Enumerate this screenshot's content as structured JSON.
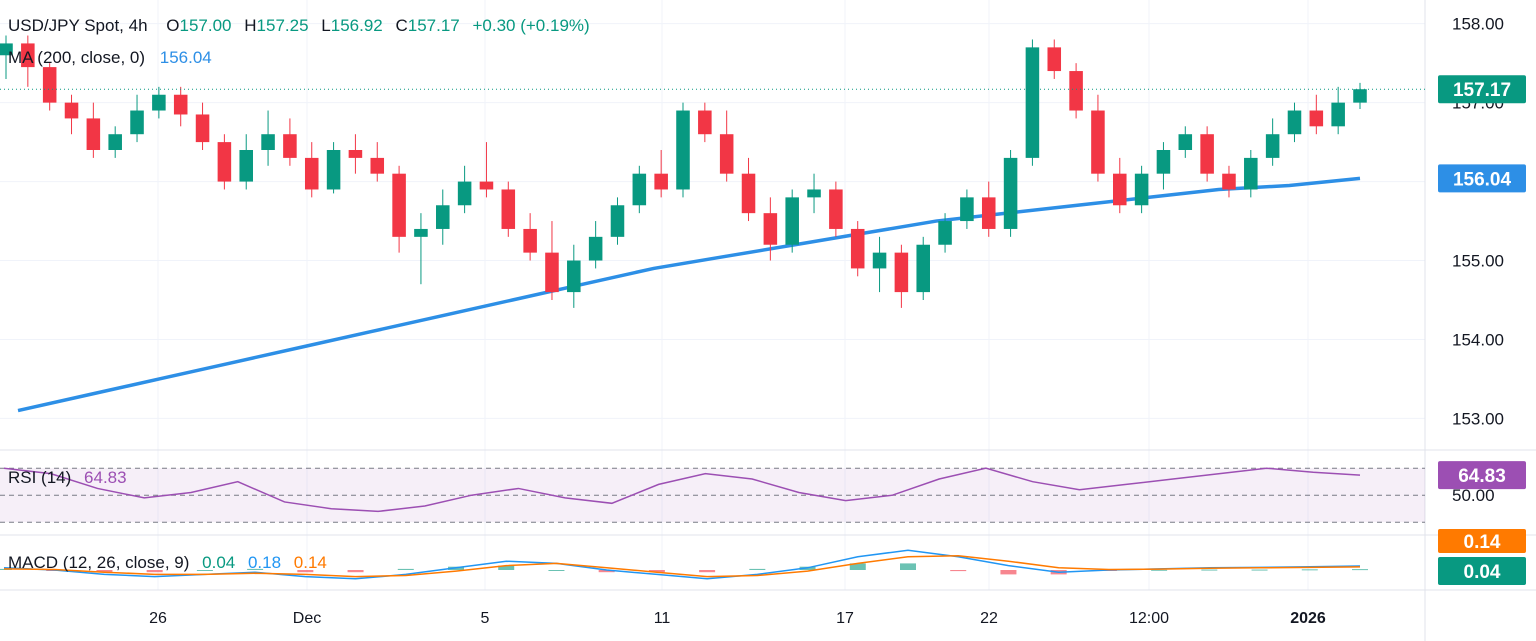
{
  "header": {
    "symbol": "USD/JPY Spot, 4h",
    "o_label": "O",
    "o_value": "157.00",
    "h_label": "H",
    "h_value": "157.25",
    "l_label": "L",
    "l_value": "156.92",
    "c_label": "C",
    "c_value": "157.17",
    "change": "+0.30 (+0.19%)"
  },
  "ma_legend": {
    "label": "MA (200, close, 0)",
    "value": "156.04"
  },
  "rsi_legend": {
    "label": "RSI (14)",
    "value": "64.83"
  },
  "macd_legend": {
    "label": "MACD (12, 26, close, 9)",
    "hist": "0.04",
    "macd": "0.18",
    "signal": "0.14"
  },
  "colors": {
    "up": "#089981",
    "down": "#f23645",
    "ma": "#2962ff",
    "ma_line": "#2d8fe6",
    "rsi": "#9c4fb3",
    "macd": "#2196f3",
    "signal": "#ff7a00",
    "price_label_bg": "#089981"
  },
  "chart_data": [
    {
      "type": "candlestick",
      "title": "USD/JPY Spot, 4h",
      "x_tick_labels": [
        "26",
        "Dec",
        "5",
        "11",
        "17",
        "22",
        "12:00",
        "2026"
      ],
      "y_tick_labels": [
        "158.00",
        "157.00",
        "156.00",
        "155.00",
        "154.00",
        "153.00"
      ],
      "ylim": [
        152.6,
        158.3
      ],
      "last_price_label": "157.17",
      "ma_label": "156.04",
      "ohlc": [
        [
          157.6,
          157.85,
          157.3,
          157.75
        ],
        [
          157.75,
          157.85,
          157.2,
          157.45
        ],
        [
          157.45,
          157.5,
          156.9,
          157.0
        ],
        [
          157.0,
          157.1,
          156.6,
          156.8
        ],
        [
          156.8,
          157.0,
          156.3,
          156.4
        ],
        [
          156.4,
          156.7,
          156.3,
          156.6
        ],
        [
          156.6,
          157.1,
          156.5,
          156.9
        ],
        [
          156.9,
          157.2,
          156.8,
          157.1
        ],
        [
          157.1,
          157.2,
          156.7,
          156.85
        ],
        [
          156.85,
          157.0,
          156.4,
          156.5
        ],
        [
          156.5,
          156.6,
          155.9,
          156.0
        ],
        [
          156.0,
          156.6,
          155.9,
          156.4
        ],
        [
          156.4,
          156.9,
          156.2,
          156.6
        ],
        [
          156.6,
          156.8,
          156.2,
          156.3
        ],
        [
          156.3,
          156.5,
          155.8,
          155.9
        ],
        [
          155.9,
          156.5,
          155.85,
          156.4
        ],
        [
          156.4,
          156.6,
          156.1,
          156.3
        ],
        [
          156.3,
          156.5,
          156.0,
          156.1
        ],
        [
          156.1,
          156.2,
          155.1,
          155.3
        ],
        [
          155.3,
          155.6,
          154.7,
          155.4
        ],
        [
          155.4,
          155.9,
          155.2,
          155.7
        ],
        [
          155.7,
          156.2,
          155.6,
          156.0
        ],
        [
          156.0,
          156.5,
          155.8,
          155.9
        ],
        [
          155.9,
          156.0,
          155.3,
          155.4
        ],
        [
          155.4,
          155.6,
          155.0,
          155.1
        ],
        [
          155.1,
          155.5,
          154.5,
          154.6
        ],
        [
          154.6,
          155.2,
          154.4,
          155.0
        ],
        [
          155.0,
          155.5,
          154.9,
          155.3
        ],
        [
          155.3,
          155.8,
          155.2,
          155.7
        ],
        [
          155.7,
          156.2,
          155.6,
          156.1
        ],
        [
          156.1,
          156.4,
          155.8,
          155.9
        ],
        [
          155.9,
          157.0,
          155.8,
          156.9
        ],
        [
          156.9,
          157.0,
          156.5,
          156.6
        ],
        [
          156.6,
          156.9,
          156.0,
          156.1
        ],
        [
          156.1,
          156.3,
          155.5,
          155.6
        ],
        [
          155.6,
          155.8,
          155.0,
          155.2
        ],
        [
          155.2,
          155.9,
          155.1,
          155.8
        ],
        [
          155.8,
          156.1,
          155.6,
          155.9
        ],
        [
          155.9,
          156.0,
          155.3,
          155.4
        ],
        [
          155.4,
          155.5,
          154.8,
          154.9
        ],
        [
          154.9,
          155.3,
          154.6,
          155.1
        ],
        [
          155.1,
          155.2,
          154.4,
          154.6
        ],
        [
          154.6,
          155.3,
          154.5,
          155.2
        ],
        [
          155.2,
          155.6,
          155.1,
          155.5
        ],
        [
          155.5,
          155.9,
          155.4,
          155.8
        ],
        [
          155.8,
          156.0,
          155.3,
          155.4
        ],
        [
          155.4,
          156.4,
          155.3,
          156.3
        ],
        [
          156.3,
          157.8,
          156.2,
          157.7
        ],
        [
          157.7,
          157.8,
          157.3,
          157.4
        ],
        [
          157.4,
          157.5,
          156.8,
          156.9
        ],
        [
          156.9,
          157.1,
          156.0,
          156.1
        ],
        [
          156.1,
          156.3,
          155.6,
          155.7
        ],
        [
          155.7,
          156.2,
          155.6,
          156.1
        ],
        [
          156.1,
          156.5,
          155.9,
          156.4
        ],
        [
          156.4,
          156.7,
          156.3,
          156.6
        ],
        [
          156.6,
          156.7,
          156.0,
          156.1
        ],
        [
          156.1,
          156.2,
          155.8,
          155.9
        ],
        [
          155.9,
          156.4,
          155.8,
          156.3
        ],
        [
          156.3,
          156.8,
          156.2,
          156.6
        ],
        [
          156.6,
          157.0,
          156.5,
          156.9
        ],
        [
          156.9,
          157.1,
          156.6,
          156.7
        ],
        [
          156.7,
          157.2,
          156.6,
          157.0
        ],
        [
          157.0,
          157.25,
          156.92,
          157.17
        ]
      ],
      "ma200": [
        153.1,
        153.3,
        153.5,
        153.7,
        153.9,
        154.1,
        154.3,
        154.5,
        154.7,
        154.9,
        155.05,
        155.2,
        155.35,
        155.5,
        155.6,
        155.7,
        155.8,
        155.9,
        155.95,
        156.04
      ]
    },
    {
      "type": "line",
      "title": "RSI (14)",
      "y_tick_labels": [
        "50.00"
      ],
      "last_value_label": "64.83",
      "series": [
        {
          "name": "RSI (14)",
          "values": [
            70,
            66,
            55,
            48,
            52,
            60,
            45,
            40,
            38,
            42,
            50,
            55,
            48,
            44,
            58,
            66,
            62,
            52,
            46,
            50,
            62,
            70,
            60,
            54,
            58,
            62,
            66,
            70,
            67,
            64.83
          ]
        }
      ]
    },
    {
      "type": "bar",
      "title": "MACD (12, 26, close, 9)",
      "hist_label": "0.04",
      "signal_label": "0.14",
      "macd_line": [
        0.1,
        0.0,
        -0.2,
        -0.3,
        -0.2,
        -0.1,
        -0.3,
        -0.4,
        -0.2,
        0.1,
        0.4,
        0.3,
        0.0,
        -0.2,
        -0.4,
        -0.2,
        0.1,
        0.6,
        0.9,
        0.6,
        0.2,
        -0.1,
        0.0,
        0.05,
        0.1,
        0.12,
        0.15,
        0.18
      ],
      "signal_line": [
        0.05,
        0.02,
        -0.1,
        -0.2,
        -0.2,
        -0.15,
        -0.2,
        -0.3,
        -0.25,
        -0.05,
        0.2,
        0.3,
        0.1,
        -0.1,
        -0.3,
        -0.25,
        -0.05,
        0.3,
        0.6,
        0.65,
        0.4,
        0.1,
        0.02,
        0.04,
        0.08,
        0.1,
        0.12,
        0.14
      ]
    }
  ]
}
